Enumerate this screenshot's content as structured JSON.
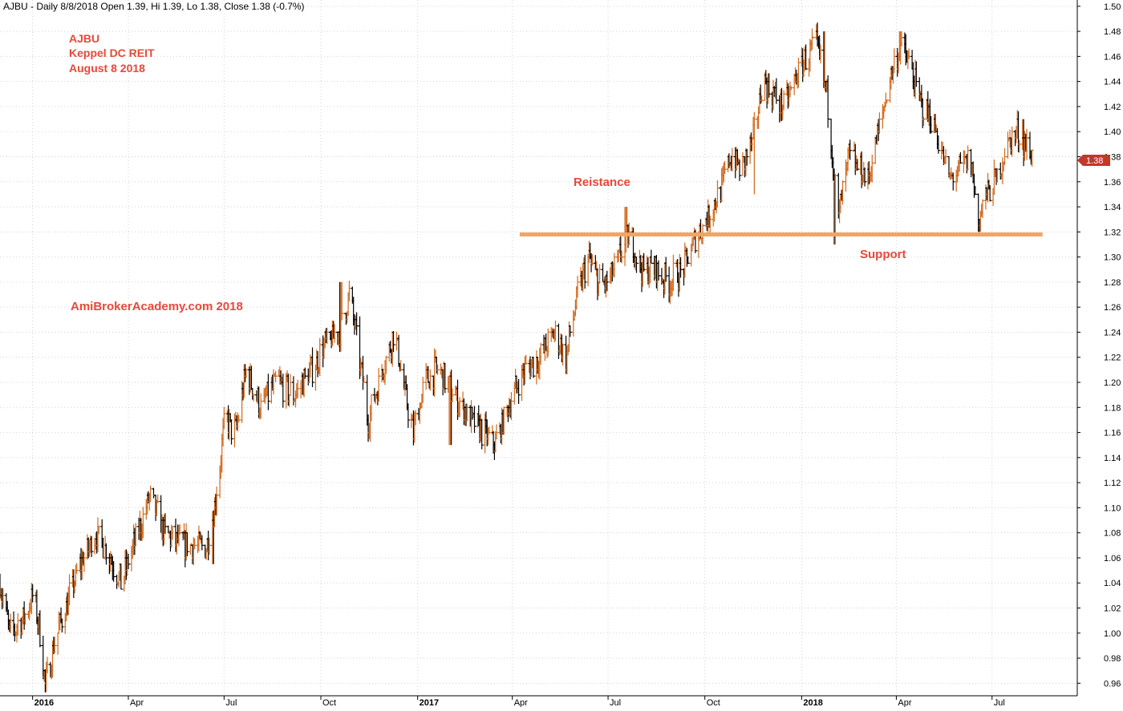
{
  "header": {
    "text": "AJBU - Daily 8/8/2018 Open 1.39, Hi 1.39, Lo 1.38, Close 1.38 (-0.7%)"
  },
  "annotations": {
    "title_lines": [
      "AJBU",
      "Keppel DC REIT",
      "August 8 2018"
    ],
    "watermark": "AmiBrokerAcademy.com  2018",
    "resistance_label": "Reistance",
    "support_label": "Support"
  },
  "colors": {
    "annotation_text": "#e8483a",
    "support_line": "#f4a460",
    "up_bar": "#d2691e",
    "down_bar": "#000000",
    "grid": "#d3d3d3",
    "price_tag": "#c0392b"
  },
  "chart_data": {
    "type": "bar",
    "ohlc_style": "price bars, up/down coloured",
    "title": "",
    "xlabel": "",
    "ylabel": "",
    "x_range": [
      "2015-12-01",
      "2018-09-20"
    ],
    "ylim": [
      0.95,
      1.505
    ],
    "y_ticks": [
      "0.96",
      "0.98",
      "1.00",
      "1.02",
      "1.04",
      "1.06",
      "1.08",
      "1.10",
      "1.12",
      "1.14",
      "1.16",
      "1.18",
      "1.20",
      "1.22",
      "1.24",
      "1.26",
      "1.28",
      "1.30",
      "1.32",
      "1.34",
      "1.36",
      "1.38",
      "1.40",
      "1.42",
      "1.44",
      "1.46",
      "1.48",
      "1.50"
    ],
    "x_ticks": [
      {
        "label": "2016",
        "date": "2016-01-01",
        "bold": true
      },
      {
        "label": "Apr",
        "date": "2016-04-01"
      },
      {
        "label": "Jul",
        "date": "2016-07-01"
      },
      {
        "label": "Oct",
        "date": "2016-10-01"
      },
      {
        "label": "2017",
        "date": "2017-01-01",
        "bold": true
      },
      {
        "label": "Apr",
        "date": "2017-04-01"
      },
      {
        "label": "Jul",
        "date": "2017-07-01"
      },
      {
        "label": "Oct",
        "date": "2017-10-01"
      },
      {
        "label": "2018",
        "date": "2018-01-01",
        "bold": true
      },
      {
        "label": "Apr",
        "date": "2018-04-01"
      },
      {
        "label": "Jul",
        "date": "2018-07-01"
      }
    ],
    "grid": true,
    "last_price": "1.38",
    "support_line": {
      "start": "2017-04-08",
      "end": "2018-08-18",
      "value": 1.318
    },
    "price_path": [
      [
        "2015-12-01",
        1.04
      ],
      [
        "2015-12-10",
        1.0
      ],
      [
        "2015-12-22",
        1.01
      ],
      [
        "2016-01-02",
        1.03
      ],
      [
        "2016-01-08",
        1.0
      ],
      [
        "2016-01-13",
        0.96
      ],
      [
        "2016-01-24",
        1.0
      ],
      [
        "2016-02-05",
        1.03
      ],
      [
        "2016-02-18",
        1.06
      ],
      [
        "2016-03-01",
        1.08
      ],
      [
        "2016-03-15",
        1.06
      ],
      [
        "2016-03-25",
        1.04
      ],
      [
        "2016-04-10",
        1.08
      ],
      [
        "2016-04-22",
        1.11
      ],
      [
        "2016-05-05",
        1.08
      ],
      [
        "2016-05-25",
        1.07
      ],
      [
        "2016-06-14",
        1.07
      ],
      [
        "2016-06-22",
        1.1
      ],
      [
        "2016-07-02",
        1.17
      ],
      [
        "2016-07-12",
        1.16
      ],
      [
        "2016-07-22",
        1.21
      ],
      [
        "2016-08-05",
        1.18
      ],
      [
        "2016-08-20",
        1.2
      ],
      [
        "2016-09-05",
        1.19
      ],
      [
        "2016-09-22",
        1.21
      ],
      [
        "2016-10-05",
        1.23
      ],
      [
        "2016-10-18",
        1.24
      ],
      [
        "2016-10-28",
        1.27
      ],
      [
        "2016-11-05",
        1.23
      ],
      [
        "2016-11-15",
        1.17
      ],
      [
        "2016-11-28",
        1.21
      ],
      [
        "2016-12-10",
        1.24
      ],
      [
        "2016-12-20",
        1.19
      ],
      [
        "2016-12-28",
        1.16
      ],
      [
        "2017-01-08",
        1.2
      ],
      [
        "2017-01-20",
        1.21
      ],
      [
        "2017-02-05",
        1.19
      ],
      [
        "2017-02-20",
        1.17
      ],
      [
        "2017-03-05",
        1.16
      ],
      [
        "2017-03-15",
        1.15
      ],
      [
        "2017-03-28",
        1.18
      ],
      [
        "2017-04-12",
        1.21
      ],
      [
        "2017-04-28",
        1.22
      ],
      [
        "2017-05-12",
        1.24
      ],
      [
        "2017-05-22",
        1.22
      ],
      [
        "2017-06-02",
        1.27
      ],
      [
        "2017-06-12",
        1.3
      ],
      [
        "2017-06-22",
        1.28
      ],
      [
        "2017-07-02",
        1.28
      ],
      [
        "2017-07-12",
        1.3
      ],
      [
        "2017-07-22",
        1.32
      ],
      [
        "2017-08-01",
        1.29
      ],
      [
        "2017-08-15",
        1.29
      ],
      [
        "2017-08-28",
        1.28
      ],
      [
        "2017-09-10",
        1.29
      ],
      [
        "2017-09-20",
        1.31
      ],
      [
        "2017-10-02",
        1.33
      ],
      [
        "2017-10-15",
        1.35
      ],
      [
        "2017-10-25",
        1.38
      ],
      [
        "2017-11-05",
        1.37
      ],
      [
        "2017-11-15",
        1.39
      ],
      [
        "2017-11-25",
        1.44
      ],
      [
        "2017-12-05",
        1.43
      ],
      [
        "2017-12-15",
        1.42
      ],
      [
        "2017-12-25",
        1.44
      ],
      [
        "2018-01-05",
        1.46
      ],
      [
        "2018-01-15",
        1.47
      ],
      [
        "2018-01-25",
        1.43
      ],
      [
        "2018-02-05",
        1.33
      ],
      [
        "2018-02-15",
        1.38
      ],
      [
        "2018-02-25",
        1.37
      ],
      [
        "2018-03-05",
        1.36
      ],
      [
        "2018-03-15",
        1.4
      ],
      [
        "2018-03-25",
        1.44
      ],
      [
        "2018-04-05",
        1.47
      ],
      [
        "2018-04-15",
        1.45
      ],
      [
        "2018-04-25",
        1.42
      ],
      [
        "2018-05-05",
        1.41
      ],
      [
        "2018-05-12",
        1.39
      ],
      [
        "2018-05-22",
        1.36
      ],
      [
        "2018-06-01",
        1.37
      ],
      [
        "2018-06-10",
        1.38
      ],
      [
        "2018-06-18",
        1.33
      ],
      [
        "2018-06-26",
        1.35
      ],
      [
        "2018-07-05",
        1.36
      ],
      [
        "2018-07-15",
        1.39
      ],
      [
        "2018-07-25",
        1.4
      ],
      [
        "2018-08-08",
        1.38
      ]
    ],
    "spike_lows": [
      [
        "2016-06-20",
        1.055
      ],
      [
        "2017-02-01",
        1.15
      ],
      [
        "2017-11-18",
        1.35
      ],
      [
        "2018-02-02",
        1.31
      ],
      [
        "2018-06-19",
        1.32
      ]
    ],
    "spike_highs": [
      [
        "2016-04-25",
        1.11
      ],
      [
        "2016-10-20",
        1.28
      ],
      [
        "2017-07-18",
        1.34
      ],
      [
        "2018-01-22",
        1.48
      ],
      [
        "2018-04-05",
        1.48
      ],
      [
        "2018-07-30",
        1.41
      ]
    ]
  }
}
